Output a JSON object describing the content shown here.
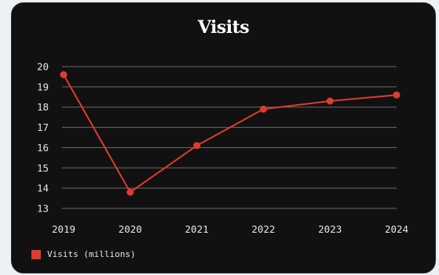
{
  "chart_data": {
    "type": "line",
    "title": "Visits",
    "categories": [
      "2019",
      "2020",
      "2021",
      "2022",
      "2023",
      "2024"
    ],
    "series": [
      {
        "name": "Visits (millions)",
        "values": [
          19.6,
          13.8,
          16.1,
          17.9,
          18.3,
          18.6
        ],
        "color": "#e03b2f"
      }
    ],
    "y_ticks": [
      "13",
      "14",
      "15",
      "16",
      "17",
      "18",
      "19",
      "20"
    ],
    "ylim": [
      13,
      20
    ],
    "grid": true,
    "legend_position": "bottom-left",
    "colors": {
      "background": "#111111",
      "grid": "#6b6b6b",
      "text": "#e6e6e6"
    }
  }
}
